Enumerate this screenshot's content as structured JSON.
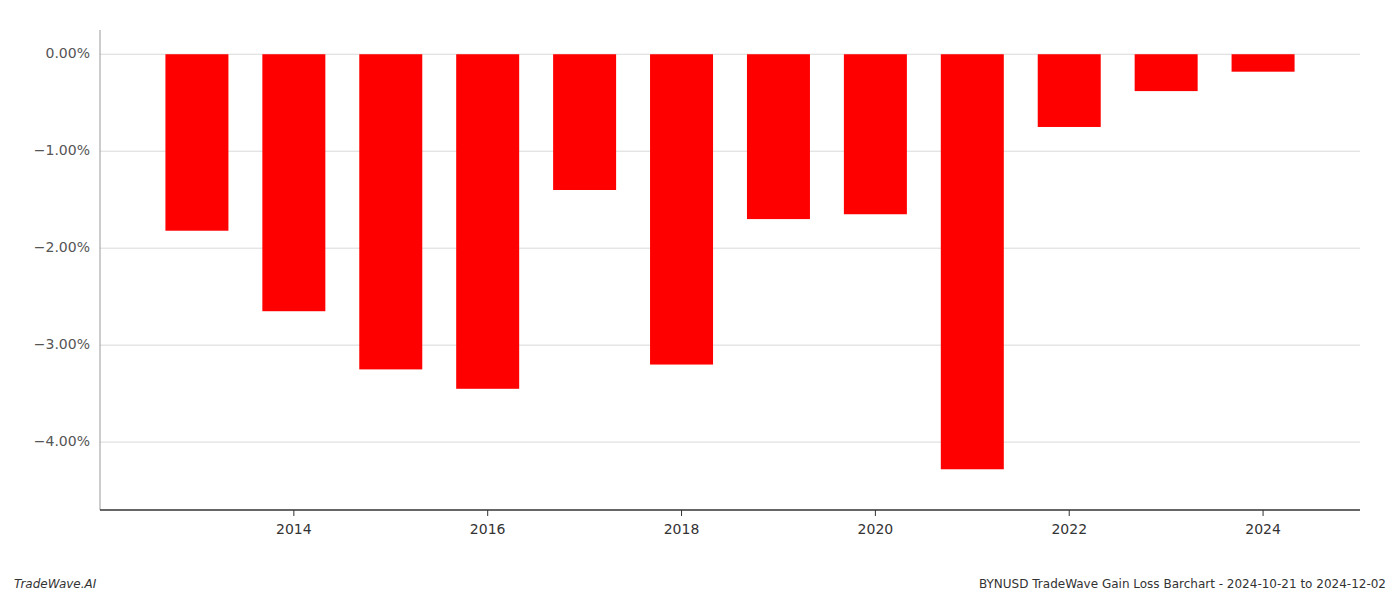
{
  "chart_data": {
    "type": "bar",
    "x": [
      2013,
      2014,
      2015,
      2016,
      2017,
      2018,
      2019,
      2020,
      2021,
      2022,
      2023,
      2024
    ],
    "values": [
      -1.82,
      -2.65,
      -3.25,
      -3.45,
      -1.4,
      -3.2,
      -1.7,
      -1.65,
      -4.28,
      -0.75,
      -0.38,
      -0.18
    ],
    "color": "#ff0000",
    "xlim": [
      2012,
      2025
    ],
    "xticks": [
      2014,
      2016,
      2018,
      2020,
      2022,
      2024
    ],
    "ylim": [
      -4.7,
      0.25
    ],
    "yticks": [
      {
        "value": 0.0,
        "label": "0.00%"
      },
      {
        "value": -1.0,
        "label": "−1.00%"
      },
      {
        "value": -2.0,
        "label": "−2.00%"
      },
      {
        "value": -3.0,
        "label": "−3.00%"
      },
      {
        "value": -4.0,
        "label": "−4.00%"
      }
    ],
    "grid": true,
    "annotations": [
      "TradeWave.AI",
      "BYNUSD TradeWave Gain Loss Barchart - 2024-10-21 to 2024-12-02"
    ]
  }
}
